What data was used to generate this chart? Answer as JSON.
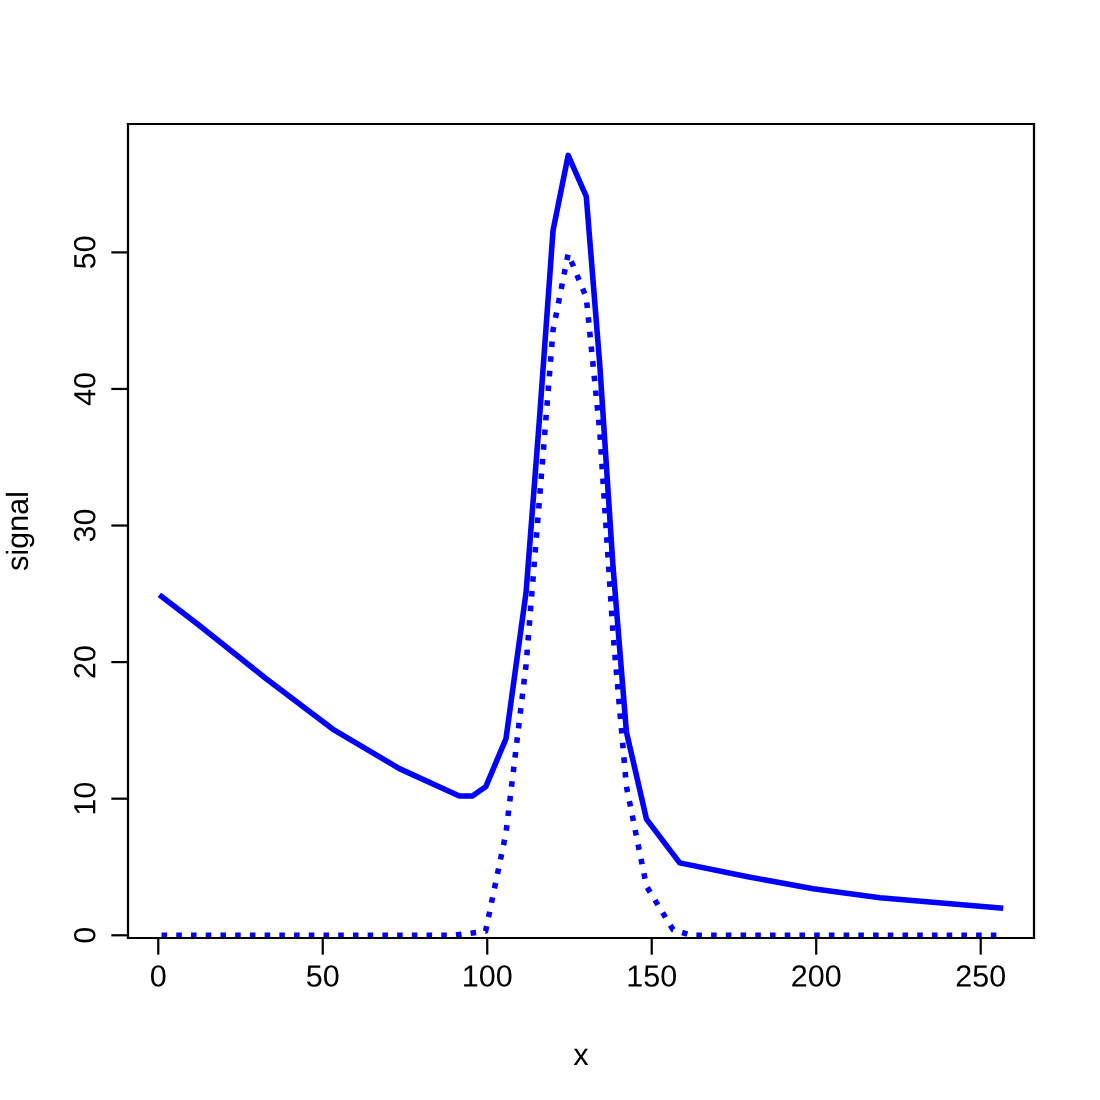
{
  "chart_data": {
    "type": "line",
    "xlabel": "x",
    "ylabel": "signal",
    "xlim": [
      -9.2,
      266.2
    ],
    "ylim": [
      -0.2,
      59.4
    ],
    "xticks": [
      0,
      50,
      100,
      150,
      200,
      250
    ],
    "yticks": [
      0,
      10,
      20,
      30,
      40,
      50
    ],
    "grid": false,
    "legend": false,
    "series": [
      {
        "color": "#0000ff",
        "line_style": "solid",
        "x": [
          1,
          12.4,
          32.7,
          53,
          73.3,
          91.5,
          95.5,
          99.6,
          105.7,
          111.8,
          115.9,
          120,
          124.6,
          130.1,
          134.2,
          138.2,
          142.3,
          148.4,
          158.5,
          178.8,
          199.1,
          219.4,
          256
        ],
        "values": [
          24.8,
          22.7,
          18.8,
          15.1,
          12.2,
          10.2,
          10.2,
          10.9,
          14.4,
          25.1,
          37.9,
          51.6,
          57.1,
          54.1,
          41.8,
          27.1,
          14.9,
          8.5,
          5.3,
          4.3,
          3.4,
          2.75,
          2.0
        ]
      },
      {
        "color": "#0000ff",
        "line_style": "dotted",
        "x": [
          1,
          90,
          99.5,
          105.7,
          111.8,
          115.9,
          120,
          124.6,
          130.1,
          134.2,
          138.2,
          142.3,
          148.4,
          156.5,
          162,
          256
        ],
        "values": [
          0,
          0,
          0.3,
          7.5,
          19.8,
          32,
          44.3,
          49.9,
          46.7,
          36.9,
          22.2,
          10.9,
          3.6,
          0.4,
          0,
          0
        ]
      }
    ]
  }
}
